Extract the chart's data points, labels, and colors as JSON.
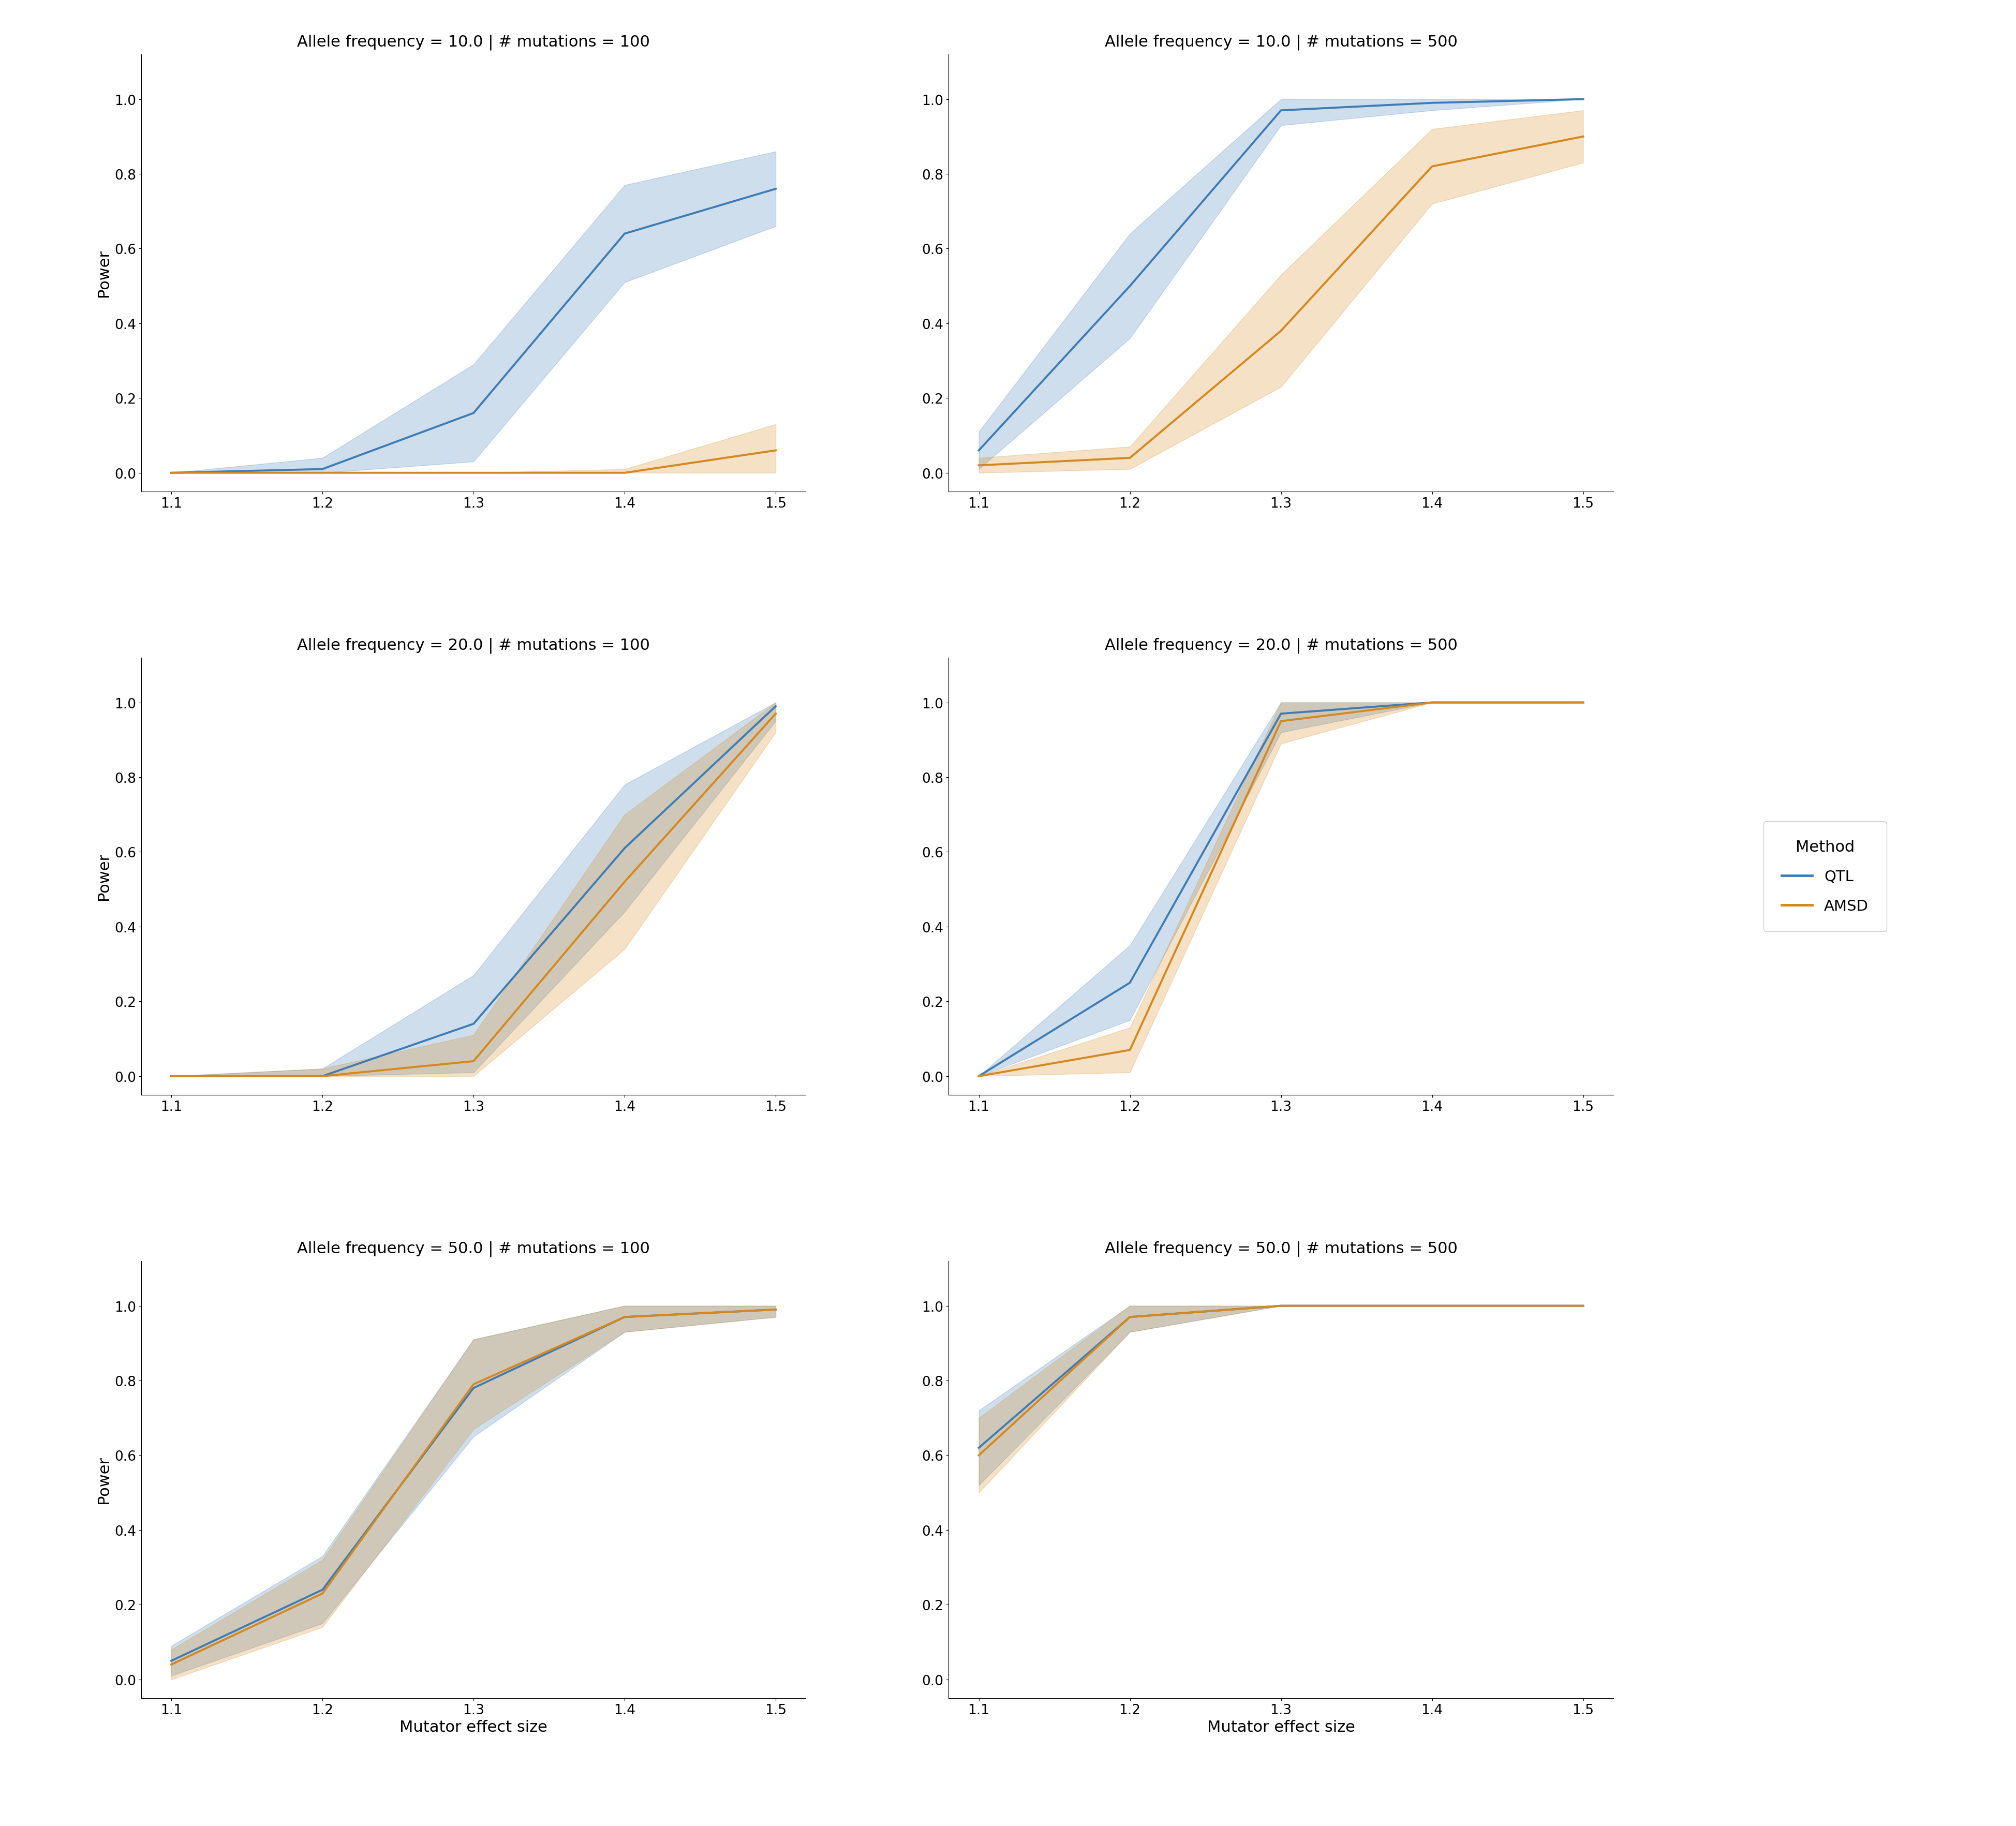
{
  "x": [
    1.1,
    1.2,
    1.3,
    1.4,
    1.5
  ],
  "subplots": [
    {
      "title": "Allele frequency = 10.0 | # mutations = 100",
      "qtl_mean": [
        0.0,
        0.01,
        0.16,
        0.64,
        0.76
      ],
      "qtl_std": [
        0.0,
        0.03,
        0.13,
        0.13,
        0.1
      ],
      "amsd_mean": [
        0.0,
        0.0,
        0.0,
        0.0,
        0.06
      ],
      "amsd_std": [
        0.0,
        0.0,
        0.0,
        0.01,
        0.07
      ]
    },
    {
      "title": "Allele frequency = 10.0 | # mutations = 500",
      "qtl_mean": [
        0.06,
        0.5,
        0.97,
        0.99,
        1.0
      ],
      "qtl_std": [
        0.05,
        0.14,
        0.04,
        0.02,
        0.0
      ],
      "amsd_mean": [
        0.02,
        0.04,
        0.38,
        0.82,
        0.9
      ],
      "amsd_std": [
        0.02,
        0.03,
        0.15,
        0.1,
        0.07
      ]
    },
    {
      "title": "Allele frequency = 20.0 | # mutations = 100",
      "qtl_mean": [
        0.0,
        0.0,
        0.14,
        0.61,
        0.99
      ],
      "qtl_std": [
        0.0,
        0.02,
        0.13,
        0.17,
        0.04
      ],
      "amsd_mean": [
        0.0,
        0.0,
        0.04,
        0.52,
        0.97
      ],
      "amsd_std": [
        0.0,
        0.02,
        0.07,
        0.18,
        0.05
      ]
    },
    {
      "title": "Allele frequency = 20.0 | # mutations = 500",
      "qtl_mean": [
        0.0,
        0.25,
        0.97,
        1.0,
        1.0
      ],
      "qtl_std": [
        0.0,
        0.1,
        0.05,
        0.0,
        0.0
      ],
      "amsd_mean": [
        0.0,
        0.07,
        0.95,
        1.0,
        1.0
      ],
      "amsd_std": [
        0.0,
        0.06,
        0.06,
        0.0,
        0.0
      ]
    },
    {
      "title": "Allele frequency = 50.0 | # mutations = 100",
      "qtl_mean": [
        0.05,
        0.24,
        0.78,
        0.97,
        0.99
      ],
      "qtl_std": [
        0.04,
        0.09,
        0.13,
        0.04,
        0.02
      ],
      "amsd_mean": [
        0.04,
        0.23,
        0.79,
        0.97,
        0.99
      ],
      "amsd_std": [
        0.04,
        0.09,
        0.12,
        0.04,
        0.02
      ]
    },
    {
      "title": "Allele frequency = 50.0 | # mutations = 500",
      "qtl_mean": [
        0.62,
        0.97,
        1.0,
        1.0,
        1.0
      ],
      "qtl_std": [
        0.1,
        0.04,
        0.0,
        0.0,
        0.0
      ],
      "amsd_mean": [
        0.6,
        0.97,
        1.0,
        1.0,
        1.0
      ],
      "amsd_std": [
        0.1,
        0.04,
        0.0,
        0.0,
        0.0
      ]
    }
  ],
  "qtl_color": "#3f7cb5",
  "amsd_color": "#d4881e",
  "qtl_fill_alpha": 0.25,
  "amsd_fill_alpha": 0.25,
  "xlabel": "Mutator effect size",
  "ylabel": "Power",
  "legend_title": "Method",
  "legend_labels": [
    "QTL",
    "AMSD"
  ],
  "ylim": [
    -0.05,
    1.12
  ],
  "yticks": [
    0.0,
    0.2,
    0.4,
    0.6,
    0.8,
    1.0
  ]
}
